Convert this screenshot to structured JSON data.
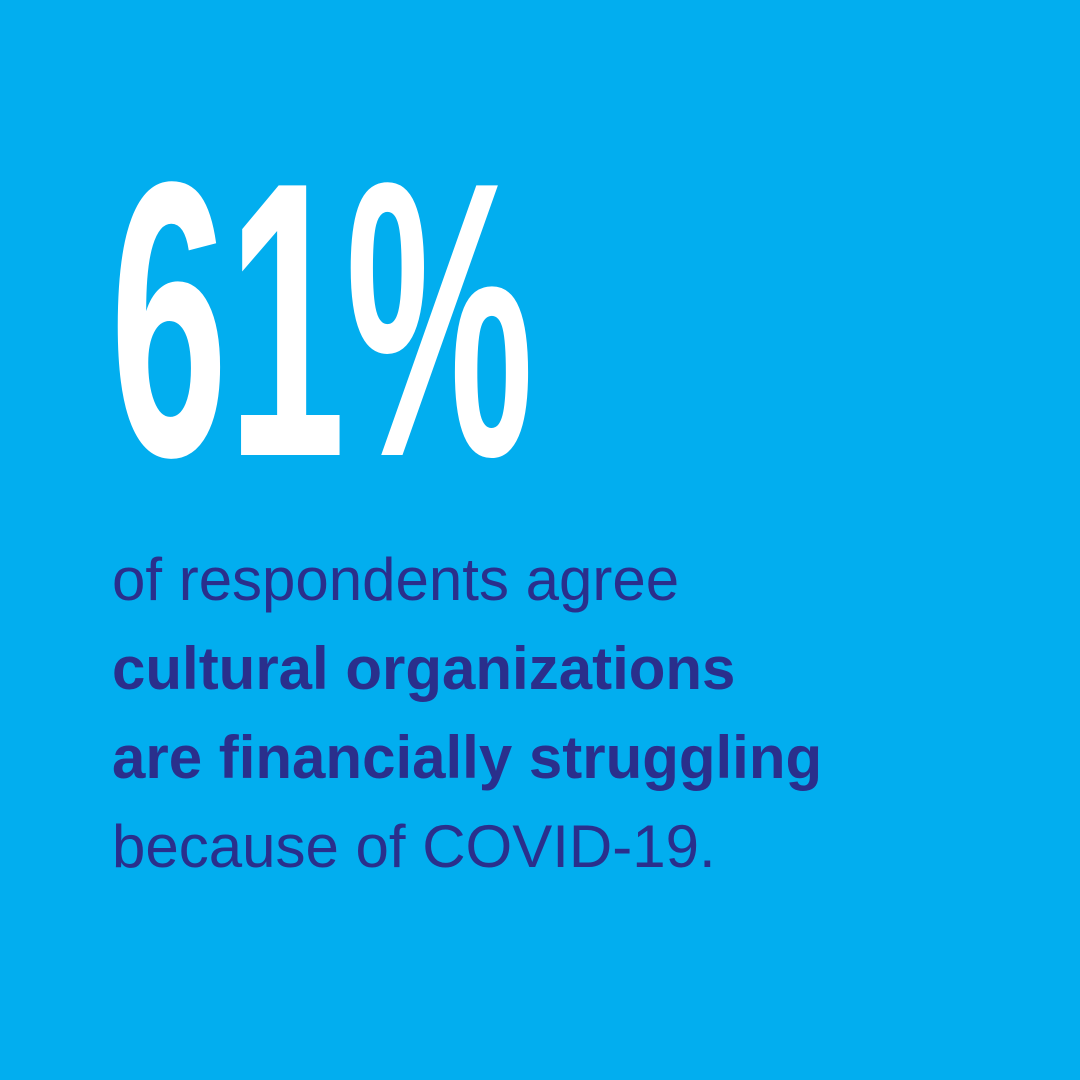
{
  "stat": "61%",
  "lines": [
    {
      "text": "of respondents agree",
      "bold": false
    },
    {
      "text": "cultural organizations",
      "bold": true
    },
    {
      "text": "are financially struggling",
      "bold": true
    },
    {
      "text": "because of COVID-19.",
      "bold": false
    }
  ]
}
